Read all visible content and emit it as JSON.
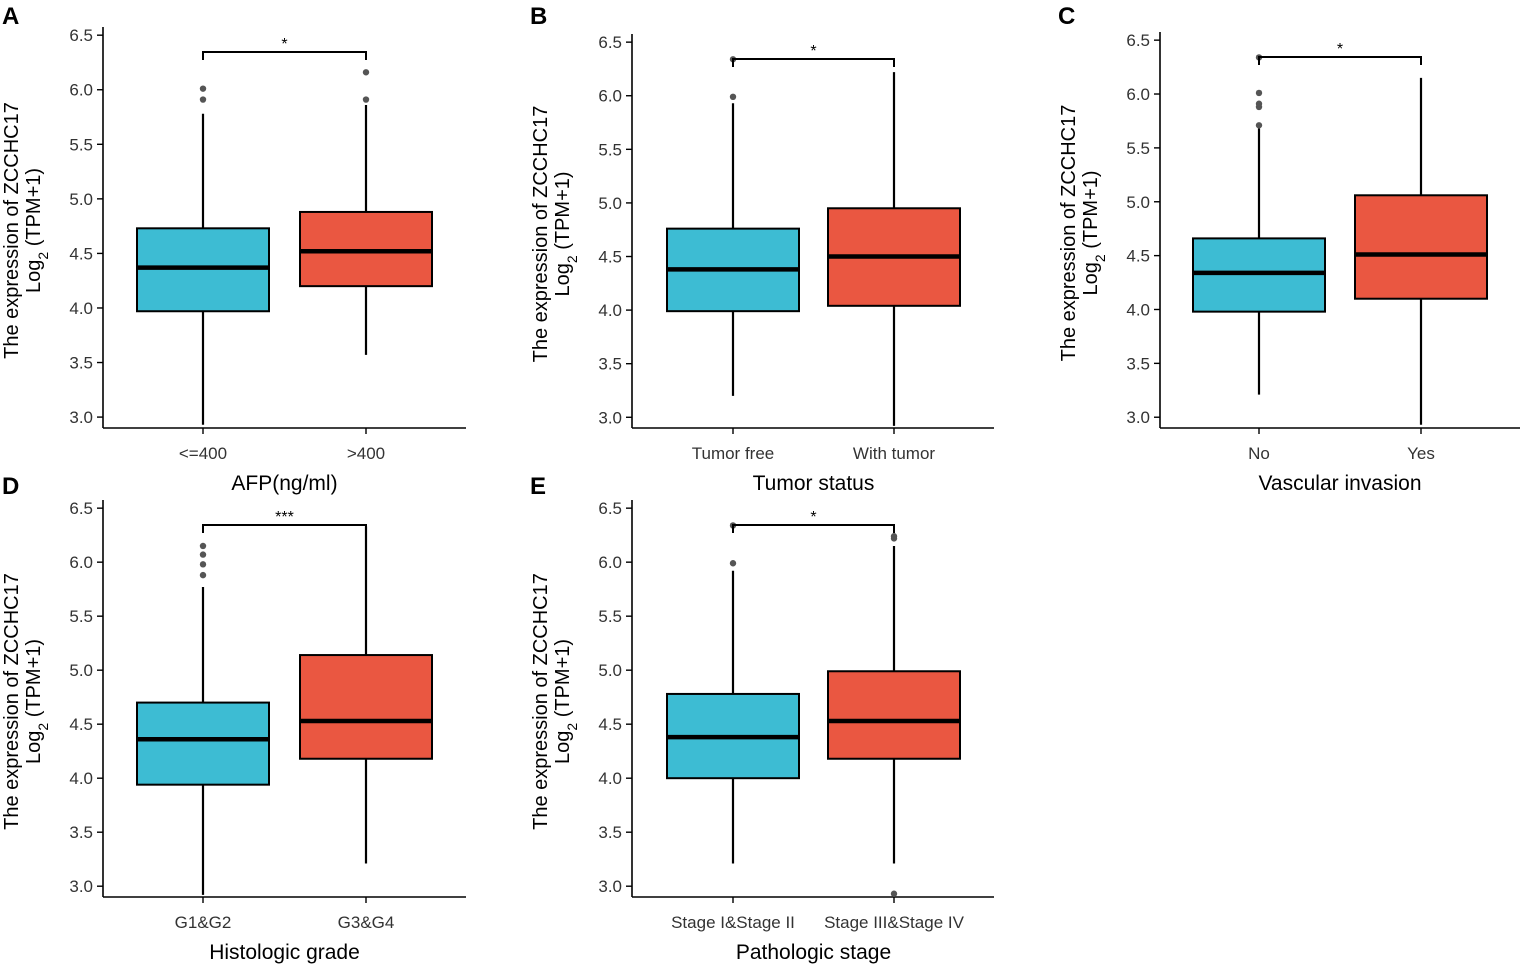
{
  "figure": {
    "ylabel_line1": "The expression of ZCCHC17",
    "ylabel_line2_prefix": "Log",
    "ylabel_line2_sub": "2",
    "ylabel_line2_suffix": " (TPM+1)",
    "colors": {
      "group1": "#3dbcd3",
      "group2": "#ea5741"
    }
  },
  "chart_data": [
    {
      "type": "boxplot",
      "panel": "A",
      "xlabel": "AFP(ng/ml)",
      "ylabel": "The expression of ZCCHC17 Log2 (TPM+1)",
      "ylim": [
        2.9,
        6.52
      ],
      "yticks": [
        3.0,
        3.5,
        4.0,
        4.5,
        5.0,
        5.5,
        6.0,
        6.5
      ],
      "categories": [
        "<=400",
        ">400"
      ],
      "boxes": [
        {
          "q1": 3.97,
          "median": 4.37,
          "q3": 4.73,
          "whisker_low": 2.93,
          "whisker_high": 5.78,
          "outliers": [
            5.91,
            6.01
          ]
        },
        {
          "q1": 4.2,
          "median": 4.52,
          "q3": 4.88,
          "whisker_low": 3.57,
          "whisker_high": 5.86,
          "outliers": [
            5.91,
            6.16
          ]
        }
      ],
      "significance": "*"
    },
    {
      "type": "boxplot",
      "panel": "B",
      "xlabel": "Tumor status",
      "ylabel": "The expression of ZCCHC17 Log2 (TPM+1)",
      "ylim": [
        2.9,
        6.52
      ],
      "yticks": [
        3.0,
        3.5,
        4.0,
        4.5,
        5.0,
        5.5,
        6.0,
        6.5
      ],
      "categories": [
        "Tumor free",
        "With tumor"
      ],
      "boxes": [
        {
          "q1": 3.99,
          "median": 4.38,
          "q3": 4.76,
          "whisker_low": 3.2,
          "whisker_high": 5.93,
          "outliers": [
            5.99,
            6.34
          ]
        },
        {
          "q1": 4.04,
          "median": 4.5,
          "q3": 4.95,
          "whisker_low": 2.92,
          "whisker_high": 6.22,
          "outliers": []
        }
      ],
      "significance": "*"
    },
    {
      "type": "boxplot",
      "panel": "C",
      "xlabel": "Vascular invasion",
      "ylabel": "The expression of ZCCHC17 Log2 (TPM+1)",
      "ylim": [
        2.9,
        6.52
      ],
      "yticks": [
        3.0,
        3.5,
        4.0,
        4.5,
        5.0,
        5.5,
        6.0,
        6.5
      ],
      "categories": [
        "No",
        "Yes"
      ],
      "boxes": [
        {
          "q1": 3.98,
          "median": 4.34,
          "q3": 4.66,
          "whisker_low": 3.21,
          "whisker_high": 5.68,
          "outliers": [
            5.71,
            5.88,
            5.91,
            6.01,
            6.34
          ]
        },
        {
          "q1": 4.1,
          "median": 4.51,
          "q3": 5.06,
          "whisker_low": 2.93,
          "whisker_high": 6.15,
          "outliers": []
        }
      ],
      "significance": "*"
    },
    {
      "type": "boxplot",
      "panel": "D",
      "xlabel": "Histologic grade",
      "ylabel": "The expression of ZCCHC17 Log2 (TPM+1)",
      "ylim": [
        2.9,
        6.52
      ],
      "yticks": [
        3.0,
        3.5,
        4.0,
        4.5,
        5.0,
        5.5,
        6.0,
        6.5
      ],
      "categories": [
        "G1&G2",
        "G3&G4"
      ],
      "boxes": [
        {
          "q1": 3.94,
          "median": 4.36,
          "q3": 4.7,
          "whisker_low": 2.92,
          "whisker_high": 5.77,
          "outliers": [
            5.88,
            5.98,
            6.07,
            6.15
          ]
        },
        {
          "q1": 4.18,
          "median": 4.53,
          "q3": 5.14,
          "whisker_low": 3.21,
          "whisker_high": 6.33,
          "outliers": []
        }
      ],
      "significance": "***"
    },
    {
      "type": "boxplot",
      "panel": "E",
      "xlabel": "Pathologic stage",
      "ylabel": "The expression of ZCCHC17 Log2 (TPM+1)",
      "ylim": [
        2.9,
        6.52
      ],
      "yticks": [
        3.0,
        3.5,
        4.0,
        4.5,
        5.0,
        5.5,
        6.0,
        6.5
      ],
      "categories": [
        "Stage I&Stage II",
        "Stage III&Stage IV"
      ],
      "boxes": [
        {
          "q1": 4.0,
          "median": 4.38,
          "q3": 4.78,
          "whisker_low": 3.21,
          "whisker_high": 5.92,
          "outliers": [
            5.99,
            6.34
          ]
        },
        {
          "q1": 4.18,
          "median": 4.53,
          "q3": 4.99,
          "whisker_low": 3.21,
          "whisker_high": 6.15,
          "outliers": [
            2.93,
            6.22,
            6.24
          ]
        }
      ],
      "significance": "*"
    }
  ]
}
